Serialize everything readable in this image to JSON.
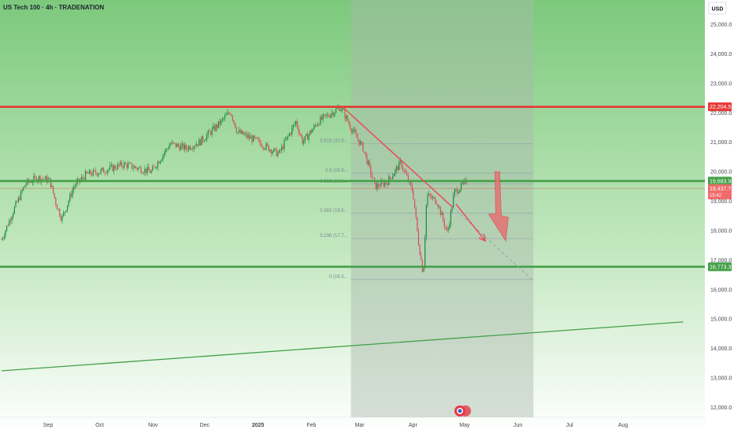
{
  "header": {
    "title": "US Tech 100 · 4h · TRADENATION"
  },
  "currency_button": "USD",
  "colors": {
    "background_zone": "#7cc97c",
    "resistance": "#e53935",
    "support": "#43a047",
    "trendline_red": "#e84d5b",
    "fib_zone": "#a9b9aa",
    "candle_up": "#1b8a3a",
    "candle_down": "#d94c57"
  },
  "chart_data": {
    "type": "candlestick",
    "title": "US Tech 100 · 4h · TRADENATION",
    "xlabel": "",
    "ylabel": "",
    "x_ticks": [
      "Sep",
      "Oct",
      "Nov",
      "Dec",
      "2025",
      "Feb",
      "Mar",
      "Apr",
      "May",
      "Jun",
      "Jul",
      "Aug"
    ],
    "y_ticks": [
      "25,000.0",
      "24,000.0",
      "23,000.0",
      "22,000.0",
      "21,000.0",
      "20,000.0",
      "19,000.0",
      "18,000.0",
      "17,000.0",
      "16,000.0",
      "15,000.0",
      "14,000.0",
      "13,000.0",
      "12,000.0"
    ],
    "ylim": [
      11850,
      25450
    ],
    "price_path": [
      [
        "2024-08-05",
        17700
      ],
      [
        "2024-08-12",
        18700
      ],
      [
        "2024-08-19",
        19600
      ],
      [
        "2024-08-26",
        19800
      ],
      [
        "2024-09-02",
        19700
      ],
      [
        "2024-09-06",
        18850
      ],
      [
        "2024-09-09",
        18400
      ],
      [
        "2024-09-16",
        19500
      ],
      [
        "2024-09-23",
        19900
      ],
      [
        "2024-10-01",
        20000
      ],
      [
        "2024-10-15",
        20250
      ],
      [
        "2024-10-31",
        20000
      ],
      [
        "2024-11-11",
        20950
      ],
      [
        "2024-11-20",
        20800
      ],
      [
        "2024-11-28",
        21000
      ],
      [
        "2024-12-09",
        21600
      ],
      [
        "2024-12-16",
        22050
      ],
      [
        "2024-12-20",
        21350
      ],
      [
        "2024-12-31",
        21050
      ],
      [
        "2025-01-13",
        20600
      ],
      [
        "2025-01-23",
        21700
      ],
      [
        "2025-01-27",
        21000
      ],
      [
        "2025-02-05",
        21700
      ],
      [
        "2025-02-18",
        22200
      ],
      [
        "2025-02-24",
        21500
      ],
      [
        "2025-03-03",
        20800
      ],
      [
        "2025-03-10",
        19500
      ],
      [
        "2025-03-17",
        19650
      ],
      [
        "2025-03-25",
        20300
      ],
      [
        "2025-04-01",
        19300
      ],
      [
        "2025-04-04",
        17700
      ],
      [
        "2025-04-07",
        16500
      ],
      [
        "2025-04-09",
        19200
      ],
      [
        "2025-04-15",
        19000
      ],
      [
        "2025-04-21",
        17900
      ],
      [
        "2025-04-25",
        19300
      ],
      [
        "2025-05-02",
        19650
      ]
    ],
    "horizontal_levels": [
      {
        "price": 22204.5,
        "label": "22,204.5",
        "kind": "resistance"
      },
      {
        "price": 19683.9,
        "label": "19,683.9",
        "kind": "support"
      },
      {
        "price": 16773.3,
        "label": "16,773.3",
        "kind": "support"
      }
    ],
    "current_price": {
      "price": 19437.7,
      "label": "19,437.7",
      "countdown": "15:42"
    },
    "fib_retracement": {
      "levels": [
        {
          "label": "0.618 (20,9...",
          "price": 20950
        },
        {
          "label": "0.5 (19,9...",
          "price": 19950
        },
        {
          "label": "0.382 (19,5...",
          "price": 19580
        },
        {
          "label": "0.382 (18,5...",
          "price": 18590
        },
        {
          "label": "0.236 (17,7...",
          "price": 17730
        },
        {
          "label": "0 (16,3...",
          "price": 16345
        }
      ],
      "start": "2025-02-24",
      "end": "2025-06-10"
    },
    "trendlines": [
      {
        "kind": "descending",
        "from": [
          "2025-02-19",
          22204
        ],
        "to": [
          "2025-06-09",
          16350
        ]
      },
      {
        "kind": "long-term support",
        "from": [
          "2024-08-05",
          13240
        ],
        "to": [
          "2025-09-05",
          14900
        ]
      }
    ],
    "arrows": [
      {
        "from": [
          "2025-04-26",
          18900
        ],
        "to": [
          "2025-05-13",
          17650
        ]
      },
      {
        "from": [
          "2025-05-20",
          20000
        ],
        "to": [
          "2025-05-24",
          17650
        ]
      }
    ],
    "grid": false,
    "legend": "none"
  }
}
